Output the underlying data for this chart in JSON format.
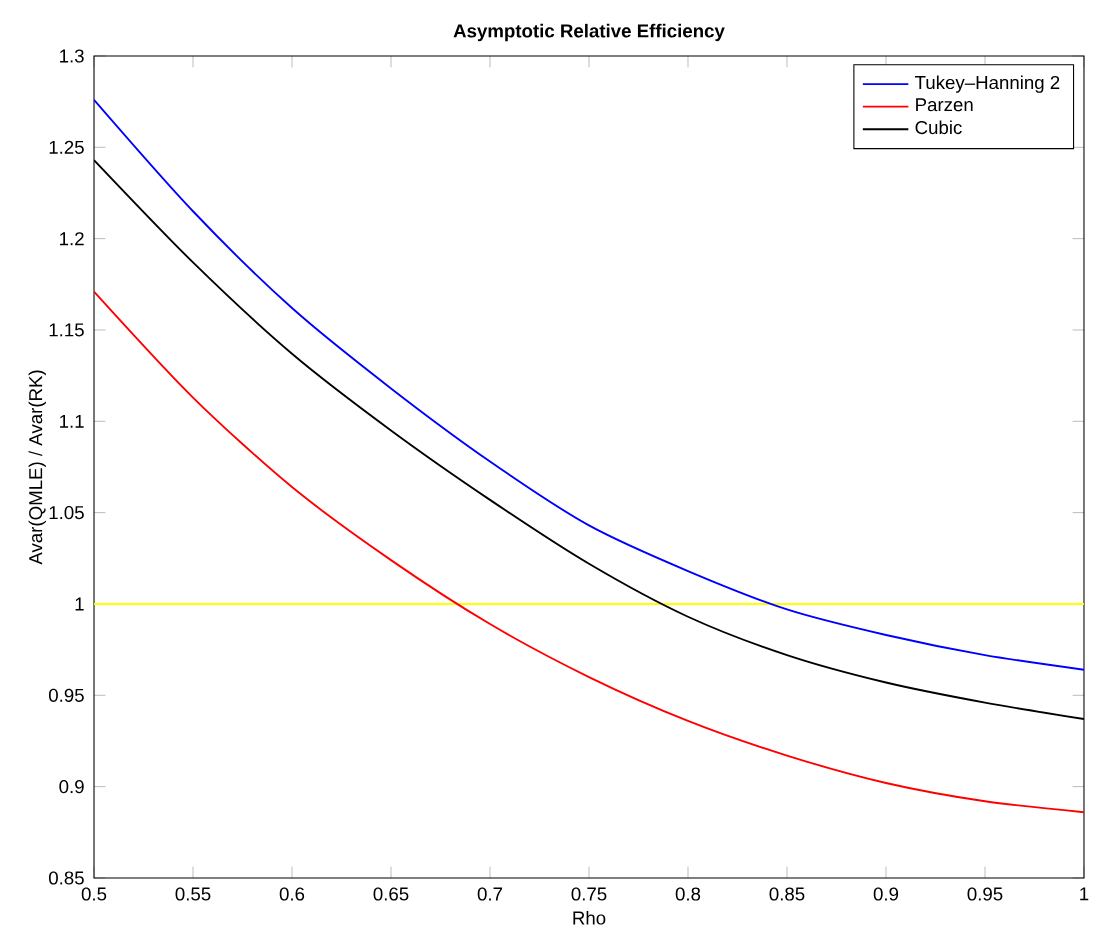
{
  "chart_data": {
    "type": "line",
    "title": "Asymptotic Relative Efficiency",
    "xlabel": "Rho",
    "ylabel": "Avar(QMLE) / Avar(RK)",
    "x": [
      0.5,
      0.55,
      0.6,
      0.65,
      0.7,
      0.75,
      0.8,
      0.85,
      0.9,
      0.95,
      1.0
    ],
    "series": [
      {
        "name": "Tukey–Hanning 2",
        "color": "#0000ff",
        "values": [
          1.276,
          1.215,
          1.162,
          1.118,
          1.078,
          1.043,
          1.018,
          0.997,
          0.983,
          0.972,
          0.964
        ]
      },
      {
        "name": "Parzen",
        "color": "#ff0000",
        "values": [
          1.171,
          1.113,
          1.064,
          1.024,
          0.989,
          0.96,
          0.936,
          0.917,
          0.902,
          0.892,
          0.886
        ]
      },
      {
        "name": "Cubic",
        "color": "#000000",
        "values": [
          1.243,
          1.187,
          1.137,
          1.095,
          1.057,
          1.022,
          0.993,
          0.972,
          0.957,
          0.946,
          0.937
        ]
      }
    ],
    "ref_lines": [
      {
        "axis": "y",
        "value": 1,
        "color": "#ffff00"
      }
    ],
    "xlim": [
      0.5,
      1
    ],
    "xticks": [
      0.5,
      0.55,
      0.6,
      0.65,
      0.7,
      0.75,
      0.8,
      0.85,
      0.9,
      0.95,
      1
    ],
    "ylim": [
      0.85,
      1.3
    ],
    "yticks": [
      0.85,
      0.9,
      0.95,
      1,
      1.05,
      1.1,
      1.15,
      1.2,
      1.25,
      1.3
    ],
    "grid": false,
    "legend": "top right",
    "marker": "none",
    "line_style": "solid"
  }
}
